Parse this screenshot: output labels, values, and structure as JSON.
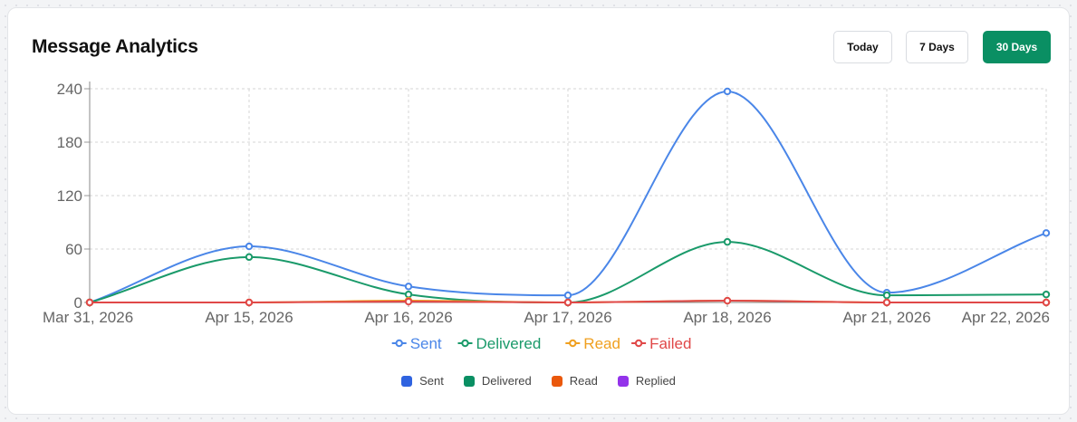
{
  "card": {
    "title": "Message Analytics",
    "buttons": [
      {
        "label": "Today",
        "active": false
      },
      {
        "label": "7 Days",
        "active": false
      },
      {
        "label": "30 Days",
        "active": true
      }
    ]
  },
  "colors": {
    "accent": "#0a8f63",
    "sent": "#4a86e8",
    "delivered": "#1a9a6a",
    "read": "#f0a020",
    "failed": "#e04848"
  },
  "chart_data": {
    "type": "line",
    "x": [
      "Mar 31, 2026",
      "Apr 15, 2026",
      "Apr 16, 2026",
      "Apr 17, 2026",
      "Apr 18, 2026",
      "Apr 21, 2026",
      "Apr 22, 2026"
    ],
    "y_ticks": [
      0,
      60,
      120,
      180,
      240
    ],
    "ylim": [
      0,
      240
    ],
    "grid": true,
    "series": [
      {
        "name": "Sent",
        "color": "#4a86e8",
        "values": [
          0,
          63,
          18,
          8,
          237,
          11,
          78
        ]
      },
      {
        "name": "Delivered",
        "color": "#1a9a6a",
        "values": [
          0,
          51,
          9,
          0,
          68,
          8,
          9
        ]
      },
      {
        "name": "Read",
        "color": "#f0a020",
        "values": [
          0,
          0,
          2,
          0,
          2,
          0,
          0
        ]
      },
      {
        "name": "Failed",
        "color": "#e04848",
        "values": [
          0,
          0,
          1,
          0,
          2,
          0,
          0
        ]
      }
    ],
    "legend_position": "bottom"
  },
  "secondary_legend": [
    {
      "label": "Sent",
      "color": "#2f63e0"
    },
    {
      "label": "Delivered",
      "color": "#0a8f63"
    },
    {
      "label": "Read",
      "color": "#ea580c"
    },
    {
      "label": "Replied",
      "color": "#9333ea"
    }
  ]
}
